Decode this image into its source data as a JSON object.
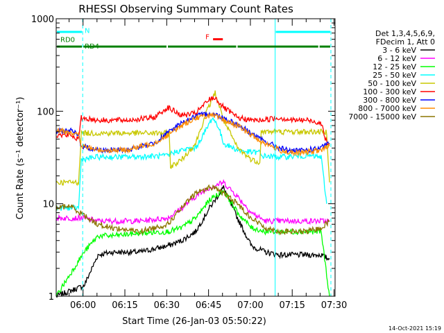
{
  "chart_data": {
    "type": "line",
    "title": "RHESSI Observing Summary Count Rates",
    "xlabel": "Start Time (26-Jan-03 05:50:22)",
    "ylabel": "Count Rate (s⁻¹ detector⁻¹)",
    "x_unit": "minutes after 05:50:22",
    "xlim": [
      0,
      100
    ],
    "ylim": [
      1,
      1000
    ],
    "yscale": "log",
    "x_ticks": [
      {
        "v": 9.63,
        "label": "06:00"
      },
      {
        "v": 24.63,
        "label": "06:15"
      },
      {
        "v": 39.63,
        "label": "06:30"
      },
      {
        "v": 54.63,
        "label": "06:45"
      },
      {
        "v": 69.63,
        "label": "07:00"
      },
      {
        "v": 84.63,
        "label": "07:15"
      },
      {
        "v": 99.63,
        "label": "07:30"
      }
    ],
    "y_ticks": [
      {
        "v": 1,
        "label": "1"
      },
      {
        "v": 10,
        "label": "10"
      },
      {
        "v": 100,
        "label": "100"
      },
      {
        "v": 1000,
        "label": "1000"
      }
    ],
    "legend_header": [
      "Det 1,3,4,5,6,9,",
      "FDecim 1, Att 0"
    ],
    "legend_position": "right",
    "series": [
      {
        "name": "3 - 6 keV",
        "color": "#000000",
        "x": [
          0,
          10,
          15,
          20,
          30,
          40,
          45,
          50,
          55,
          60,
          65,
          70,
          75,
          80,
          85,
          90,
          95,
          98
        ],
        "y": [
          1.0,
          1.3,
          2.8,
          3.0,
          3.0,
          3.5,
          4.0,
          5.0,
          9.0,
          15,
          7.0,
          3.5,
          3.0,
          2.8,
          2.8,
          2.8,
          2.8,
          2.5
        ]
      },
      {
        "name": "6 - 12 keV",
        "color": "#ff00ff",
        "x": [
          0,
          10,
          15,
          20,
          30,
          40,
          45,
          50,
          55,
          60,
          65,
          70,
          75,
          80,
          85,
          90,
          95,
          98
        ],
        "y": [
          7.0,
          7.0,
          6.5,
          6.5,
          6.5,
          7.0,
          9.0,
          12,
          15,
          17,
          12,
          8.0,
          6.5,
          6.5,
          6.5,
          6.5,
          6.5,
          6.5
        ]
      },
      {
        "name": "12 - 25 keV",
        "color": "#00ff00",
        "x": [
          0,
          10,
          15,
          20,
          30,
          40,
          45,
          50,
          55,
          60,
          65,
          70,
          75,
          80,
          85,
          90,
          95,
          98
        ],
        "y": [
          1.0,
          3.0,
          4.5,
          4.5,
          4.8,
          5.0,
          5.5,
          7.0,
          11,
          14,
          8.0,
          5.5,
          5.0,
          5.0,
          5.0,
          5.0,
          5.0,
          1.0
        ]
      },
      {
        "name": "25 - 50 keV",
        "color": "#00ffff",
        "x": [
          0,
          8,
          9,
          15,
          25,
          40.5,
          41,
          45,
          50,
          54,
          56,
          58,
          60,
          65,
          70,
          73,
          73.5,
          80,
          90,
          95,
          97
        ],
        "y": [
          9.0,
          9.0,
          30,
          32,
          32,
          33,
          35,
          38,
          40,
          65,
          85,
          70,
          45,
          38,
          36,
          36,
          33,
          32,
          33,
          32,
          10
        ]
      },
      {
        "name": "50 - 100 keV",
        "color": "#c8c800",
        "x": [
          0,
          8,
          9,
          15,
          25,
          35,
          40.5,
          41,
          45,
          50,
          54,
          57,
          60,
          65,
          70,
          73,
          73.5,
          80,
          90,
          95,
          97,
          98
        ],
        "y": [
          17,
          17,
          58,
          58,
          58,
          58,
          58,
          25,
          30,
          45,
          100,
          160,
          80,
          40,
          30,
          28,
          60,
          60,
          60,
          60,
          60,
          17
        ]
      },
      {
        "name": "100 - 300 keV",
        "color": "#ff0000",
        "x": [
          0,
          5,
          8,
          9,
          15,
          25,
          35,
          40,
          45,
          50,
          55,
          57,
          60,
          65,
          70,
          73,
          80,
          85,
          90,
          95,
          97,
          98
        ],
        "y": [
          55,
          55,
          50,
          85,
          80,
          80,
          85,
          110,
          90,
          95,
          135,
          140,
          110,
          85,
          80,
          80,
          85,
          80,
          80,
          75,
          45,
          45
        ]
      },
      {
        "name": "300 - 800 keV",
        "color": "#0000ff",
        "x": [
          0,
          5,
          8,
          9,
          15,
          25,
          35,
          40,
          45,
          50,
          55,
          57,
          60,
          65,
          70,
          73,
          80,
          85,
          90,
          95,
          98
        ],
        "y": [
          60,
          62,
          55,
          42,
          38,
          38,
          45,
          58,
          75,
          88,
          95,
          92,
          85,
          72,
          58,
          50,
          40,
          37,
          38,
          40,
          45
        ]
      },
      {
        "name": "800 - 7000 keV",
        "color": "#ff8c00",
        "x": [
          0,
          5,
          8,
          9,
          15,
          25,
          35,
          40,
          45,
          50,
          55,
          57,
          60,
          65,
          70,
          73,
          80,
          85,
          90,
          95,
          98
        ],
        "y": [
          62,
          60,
          55,
          42,
          38,
          38,
          45,
          55,
          70,
          85,
          90,
          88,
          80,
          70,
          55,
          48,
          38,
          35,
          36,
          38,
          42
        ]
      },
      {
        "name": "7000 - 15000 keV",
        "color": "#8b7500",
        "x": [
          0,
          5,
          10,
          15,
          20,
          30,
          40,
          45,
          50,
          55,
          57,
          60,
          65,
          70,
          75,
          80,
          85,
          90,
          95,
          98
        ],
        "y": [
          9.0,
          9.5,
          7.5,
          6.0,
          5.5,
          5.0,
          6.0,
          9.0,
          13,
          15,
          15,
          13,
          10,
          7.0,
          5.5,
          5.0,
          5.0,
          5.0,
          5.5,
          6.5
        ]
      }
    ],
    "annotations": [
      {
        "label": "N",
        "x": 10.2,
        "y": 700,
        "color": "#00ffff"
      },
      {
        "label": "RD0",
        "x": 1.5,
        "y": 560,
        "color": "#008000"
      },
      {
        "label": "RD4",
        "x": 10.2,
        "y": 475,
        "color": "#008000"
      },
      {
        "label": "F",
        "x": 53.5,
        "y": 600,
        "color": "#ff0000"
      }
    ],
    "status_bars": [
      {
        "color": "#00ffff",
        "y": 720,
        "segments": [
          [
            0,
            9.5
          ],
          [
            78.5,
            98.5
          ]
        ]
      },
      {
        "color": "#008000",
        "y": 500,
        "segments": [
          [
            0,
            9.5
          ],
          [
            9.5,
            39.8
          ],
          [
            39.8,
            64.8
          ],
          [
            64.8,
            94.2
          ],
          [
            94.2,
            98.5
          ]
        ]
      },
      {
        "color": "#ff0000",
        "y": 600,
        "segments": [
          [
            56,
            60
          ]
        ]
      }
    ],
    "vlines": [
      {
        "x": 9.5,
        "style": "dashed",
        "color": "#00ffff"
      },
      {
        "x": 78.5,
        "style": "solid",
        "color": "#00ffff"
      },
      {
        "x": 98.5,
        "style": "dashed",
        "color": "#00ffff"
      }
    ],
    "footer_date": "14-Oct-2021 15:19"
  }
}
